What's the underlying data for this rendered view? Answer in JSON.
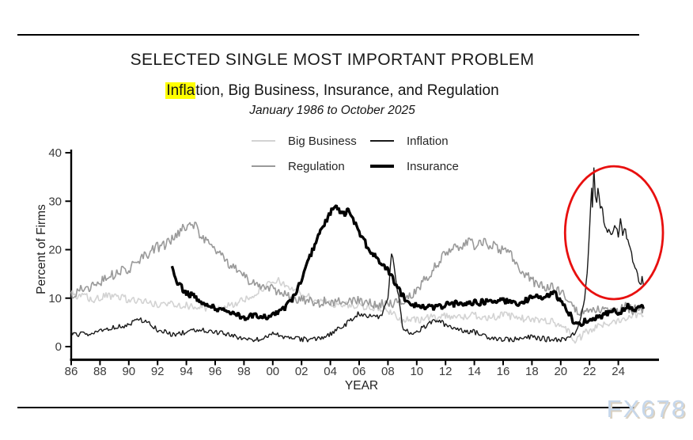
{
  "header": {
    "title": "SELECTED SINGLE MOST IMPORTANT PROBLEM",
    "subtitle": {
      "highlight": "Infla",
      "rest": "tion, Big Business, Insurance, and Regulation"
    },
    "period": "January 1986 to October 2025"
  },
  "watermark": {
    "text": "FX678",
    "color": "#c6d7eb"
  },
  "chart_data": {
    "type": "line",
    "title": "SELECTED SINGLE MOST IMPORTANT PROBLEM",
    "subtitle": "Inflation, Big Business, Insurance, and Regulation",
    "period": "January 1986 to October 2025",
    "xlabel": "YEAR",
    "ylabel": "Percent of Firms",
    "xlim": [
      1986,
      2026.2
    ],
    "ylim": [
      0,
      40
    ],
    "grid": false,
    "yticks": [
      0,
      10,
      20,
      30,
      40
    ],
    "xtick_years": [
      1986,
      1988,
      1990,
      1992,
      1994,
      1996,
      1998,
      2000,
      2002,
      2004,
      2006,
      2008,
      2010,
      2012,
      2014,
      2016,
      2018,
      2020,
      2022,
      2024
    ],
    "xtick_labels": [
      "86",
      "88",
      "90",
      "92",
      "94",
      "96",
      "98",
      "00",
      "02",
      "04",
      "06",
      "08",
      "10",
      "12",
      "14",
      "16",
      "18",
      "20",
      "22",
      "24"
    ],
    "legend": {
      "position": "top-center",
      "items": [
        {
          "name": "Big Business",
          "color": "#d3d3d3",
          "width": 2
        },
        {
          "name": "Inflation",
          "color": "#1a1a1a",
          "width": 1.5
        },
        {
          "name": "Regulation",
          "color": "#9a9a9a",
          "width": 2
        },
        {
          "name": "Insurance",
          "color": "#000000",
          "width": 3.5
        }
      ]
    },
    "annotation": {
      "shape": "ellipse",
      "color": "#e8100f",
      "center_year": 2023.7,
      "center_value": 23.5,
      "rx_years": 3.4,
      "ry_value": 13.7,
      "note": "highlights the 2021-2025 inflation spike"
    },
    "series": [
      {
        "name": "Big Business",
        "color": "#d3d3d3",
        "stroke_width": 1.6,
        "jitter": 0.8,
        "points": [
          [
            1986,
            11
          ],
          [
            1986.5,
            10
          ],
          [
            1987,
            10.5
          ],
          [
            1987.5,
            9.5
          ],
          [
            1988,
            10
          ],
          [
            1988.5,
            10.5
          ],
          [
            1989,
            10
          ],
          [
            1989.5,
            10.5
          ],
          [
            1990,
            9.5
          ],
          [
            1991,
            9.5
          ],
          [
            1991.5,
            9
          ],
          [
            1992,
            8.5
          ],
          [
            1993,
            9
          ],
          [
            1994,
            8.5
          ],
          [
            1995,
            8
          ],
          [
            1996,
            8
          ],
          [
            1997,
            8.5
          ],
          [
            1998,
            9.5
          ],
          [
            1998.5,
            10.5
          ],
          [
            1999,
            11.5
          ],
          [
            1999.5,
            12.5
          ],
          [
            2000,
            13
          ],
          [
            2000.4,
            13.5
          ],
          [
            2001,
            12.5
          ],
          [
            2002,
            11
          ],
          [
            2003,
            9.5
          ],
          [
            2004,
            9
          ],
          [
            2005,
            8.5
          ],
          [
            2006,
            8.5
          ],
          [
            2007,
            8
          ],
          [
            2008,
            7.5
          ],
          [
            2008.7,
            6
          ],
          [
            2009,
            5.5
          ],
          [
            2010,
            5.5
          ],
          [
            2011,
            6
          ],
          [
            2012,
            6.5
          ],
          [
            2013,
            6
          ],
          [
            2014,
            6.5
          ],
          [
            2015,
            6
          ],
          [
            2016,
            6.5
          ],
          [
            2017,
            6
          ],
          [
            2018,
            5.5
          ],
          [
            2019,
            5.5
          ],
          [
            2020,
            4.5
          ],
          [
            2020.6,
            3
          ],
          [
            2021,
            1
          ],
          [
            2021.4,
            2
          ],
          [
            2021.8,
            3
          ],
          [
            2022.5,
            4
          ],
          [
            2023,
            4.5
          ],
          [
            2024,
            5.5
          ],
          [
            2024.5,
            6
          ],
          [
            2025,
            6.5
          ],
          [
            2025.75,
            7
          ]
        ]
      },
      {
        "name": "Regulation",
        "color": "#9a9a9a",
        "stroke_width": 1.6,
        "jitter": 1.1,
        "points": [
          [
            1986,
            11
          ],
          [
            1987,
            12
          ],
          [
            1988,
            13.5
          ],
          [
            1989,
            15
          ],
          [
            1990,
            16
          ],
          [
            1990.5,
            17
          ],
          [
            1991,
            18.5
          ],
          [
            1991.5,
            19.5
          ],
          [
            1992,
            20.5
          ],
          [
            1992.5,
            21
          ],
          [
            1993,
            22
          ],
          [
            1993.5,
            23.5
          ],
          [
            1994,
            25
          ],
          [
            1994.3,
            26
          ],
          [
            1994.7,
            24.5
          ],
          [
            1995,
            23
          ],
          [
            1995.5,
            21.5
          ],
          [
            1996,
            19.5
          ],
          [
            1996.5,
            18.5
          ],
          [
            1997,
            17
          ],
          [
            1997.5,
            16
          ],
          [
            1998,
            14.5
          ],
          [
            1998.5,
            13.5
          ],
          [
            1999,
            13
          ],
          [
            2000,
            12
          ],
          [
            2001,
            10.5
          ],
          [
            2002,
            9.5
          ],
          [
            2003,
            9
          ],
          [
            2004,
            9.5
          ],
          [
            2005,
            9
          ],
          [
            2006,
            9.5
          ],
          [
            2007,
            9
          ],
          [
            2008,
            8.5
          ],
          [
            2009,
            9.5
          ],
          [
            2009.5,
            10.5
          ],
          [
            2010,
            12
          ],
          [
            2010.5,
            13.5
          ],
          [
            2011,
            15.5
          ],
          [
            2011.5,
            17.5
          ],
          [
            2012,
            19
          ],
          [
            2012.5,
            20
          ],
          [
            2013,
            20.5
          ],
          [
            2013.5,
            21.5
          ],
          [
            2014,
            21
          ],
          [
            2014.5,
            22
          ],
          [
            2015,
            21
          ],
          [
            2015.5,
            20.5
          ],
          [
            2016,
            20
          ],
          [
            2016.5,
            19
          ],
          [
            2017,
            16.5
          ],
          [
            2017.5,
            15
          ],
          [
            2018,
            13.5
          ],
          [
            2019,
            12.5
          ],
          [
            2020,
            11.5
          ],
          [
            2020.6,
            9.5
          ],
          [
            2021,
            8
          ],
          [
            2021.5,
            7
          ],
          [
            2022,
            7.5
          ],
          [
            2023,
            7.5
          ],
          [
            2024,
            7
          ],
          [
            2024.5,
            8.5
          ],
          [
            2025,
            7.5
          ],
          [
            2025.75,
            8
          ]
        ]
      },
      {
        "name": "Inflation",
        "color": "#1a1a1a",
        "stroke_width": 1.4,
        "jitter": 0.55,
        "points": [
          [
            1986,
            3
          ],
          [
            1986.5,
            2.5
          ],
          [
            1987,
            2.5
          ],
          [
            1988,
            3
          ],
          [
            1988.5,
            3.5
          ],
          [
            1989,
            4
          ],
          [
            1990,
            4.5
          ],
          [
            1990.7,
            5.5
          ],
          [
            1991,
            5.5
          ],
          [
            1991.5,
            4.5
          ],
          [
            1992,
            3.5
          ],
          [
            1993,
            2.5
          ],
          [
            1994,
            3
          ],
          [
            1994.5,
            3.5
          ],
          [
            1995,
            3.5
          ],
          [
            1996,
            3
          ],
          [
            1997,
            2.5
          ],
          [
            1998,
            1.5
          ],
          [
            1999,
            1.5
          ],
          [
            2000,
            2.5
          ],
          [
            2001,
            2
          ],
          [
            2002,
            1.5
          ],
          [
            2003,
            1.5
          ],
          [
            2004,
            2.5
          ],
          [
            2005,
            4.5
          ],
          [
            2005.5,
            5.5
          ],
          [
            2006,
            7
          ],
          [
            2006.5,
            6
          ],
          [
            2007,
            6.5
          ],
          [
            2007.5,
            6
          ],
          [
            2008,
            10
          ],
          [
            2008.25,
            19.5
          ],
          [
            2008.5,
            15
          ],
          [
            2008.8,
            9
          ],
          [
            2009,
            4
          ],
          [
            2009.5,
            3
          ],
          [
            2010,
            3
          ],
          [
            2010.5,
            4
          ],
          [
            2011,
            5
          ],
          [
            2011.4,
            5.5
          ],
          [
            2012,
            4.5
          ],
          [
            2013,
            3.5
          ],
          [
            2014,
            3
          ],
          [
            2015,
            2
          ],
          [
            2016,
            1.5
          ],
          [
            2017,
            1.5
          ],
          [
            2018,
            2
          ],
          [
            2019,
            1.5
          ],
          [
            2020,
            1.5
          ],
          [
            2020.7,
            2
          ],
          [
            2021,
            3
          ],
          [
            2021.4,
            6
          ],
          [
            2021.7,
            11
          ],
          [
            2021.9,
            18
          ],
          [
            2022,
            24
          ],
          [
            2022.1,
            30
          ],
          [
            2022.15,
            33
          ],
          [
            2022.2,
            29
          ],
          [
            2022.3,
            37
          ],
          [
            2022.4,
            31
          ],
          [
            2022.5,
            30
          ],
          [
            2022.6,
            33
          ],
          [
            2022.75,
            29
          ],
          [
            2022.9,
            28
          ],
          [
            2023,
            26
          ],
          [
            2023.2,
            23.5
          ],
          [
            2023.4,
            24
          ],
          [
            2023.6,
            23
          ],
          [
            2023.8,
            25
          ],
          [
            2024,
            23
          ],
          [
            2024.15,
            26
          ],
          [
            2024.3,
            23
          ],
          [
            2024.45,
            24.5
          ],
          [
            2024.6,
            22.5
          ],
          [
            2024.8,
            21
          ],
          [
            2025,
            18
          ],
          [
            2025.2,
            16.5
          ],
          [
            2025.35,
            15
          ],
          [
            2025.5,
            12.5
          ],
          [
            2025.65,
            14
          ],
          [
            2025.75,
            13
          ]
        ]
      },
      {
        "name": "Insurance",
        "color": "#000000",
        "stroke_width": 3.4,
        "jitter": 0.7,
        "points": [
          [
            1993,
            16
          ],
          [
            1993.2,
            14.5
          ],
          [
            1993.4,
            13
          ],
          [
            1993.7,
            12
          ],
          [
            1994,
            11
          ],
          [
            1994.5,
            10.5
          ],
          [
            1995,
            9.5
          ],
          [
            1995.5,
            8.5
          ],
          [
            1996,
            8
          ],
          [
            1996.5,
            7.5
          ],
          [
            1997,
            7
          ],
          [
            1997.5,
            6.5
          ],
          [
            1998,
            6
          ],
          [
            1999,
            6.5
          ],
          [
            1999.5,
            6
          ],
          [
            2000,
            6.5
          ],
          [
            2000.5,
            7
          ],
          [
            2001,
            8.5
          ],
          [
            2001.5,
            10.5
          ],
          [
            2002,
            14
          ],
          [
            2002.5,
            18
          ],
          [
            2003,
            21.5
          ],
          [
            2003.3,
            24
          ],
          [
            2003.7,
            26
          ],
          [
            2004,
            27.5
          ],
          [
            2004.3,
            29
          ],
          [
            2004.6,
            28
          ],
          [
            2005,
            27.5
          ],
          [
            2005.3,
            28
          ],
          [
            2005.7,
            25.5
          ],
          [
            2006,
            23.5
          ],
          [
            2006.5,
            21
          ],
          [
            2007,
            19
          ],
          [
            2007.5,
            17
          ],
          [
            2008,
            15.5
          ],
          [
            2008.5,
            13
          ],
          [
            2009,
            10.5
          ],
          [
            2009.5,
            9
          ],
          [
            2010,
            8.5
          ],
          [
            2011,
            8
          ],
          [
            2012,
            8.5
          ],
          [
            2013,
            9
          ],
          [
            2014,
            9
          ],
          [
            2015,
            9.5
          ],
          [
            2016,
            9.5
          ],
          [
            2017,
            9
          ],
          [
            2018,
            10
          ],
          [
            2019,
            10.5
          ],
          [
            2019.6,
            11
          ],
          [
            2020,
            9.5
          ],
          [
            2020.5,
            7.5
          ],
          [
            2020.9,
            5
          ],
          [
            2021.3,
            4.5
          ],
          [
            2021.7,
            5.5
          ],
          [
            2022,
            5.5
          ],
          [
            2022.5,
            6
          ],
          [
            2023,
            6.5
          ],
          [
            2023.5,
            7.5
          ],
          [
            2024,
            6.5
          ],
          [
            2024.3,
            7.5
          ],
          [
            2024.6,
            8.5
          ],
          [
            2025,
            7.5
          ],
          [
            2025.4,
            8
          ],
          [
            2025.75,
            8.5
          ]
        ]
      }
    ]
  }
}
